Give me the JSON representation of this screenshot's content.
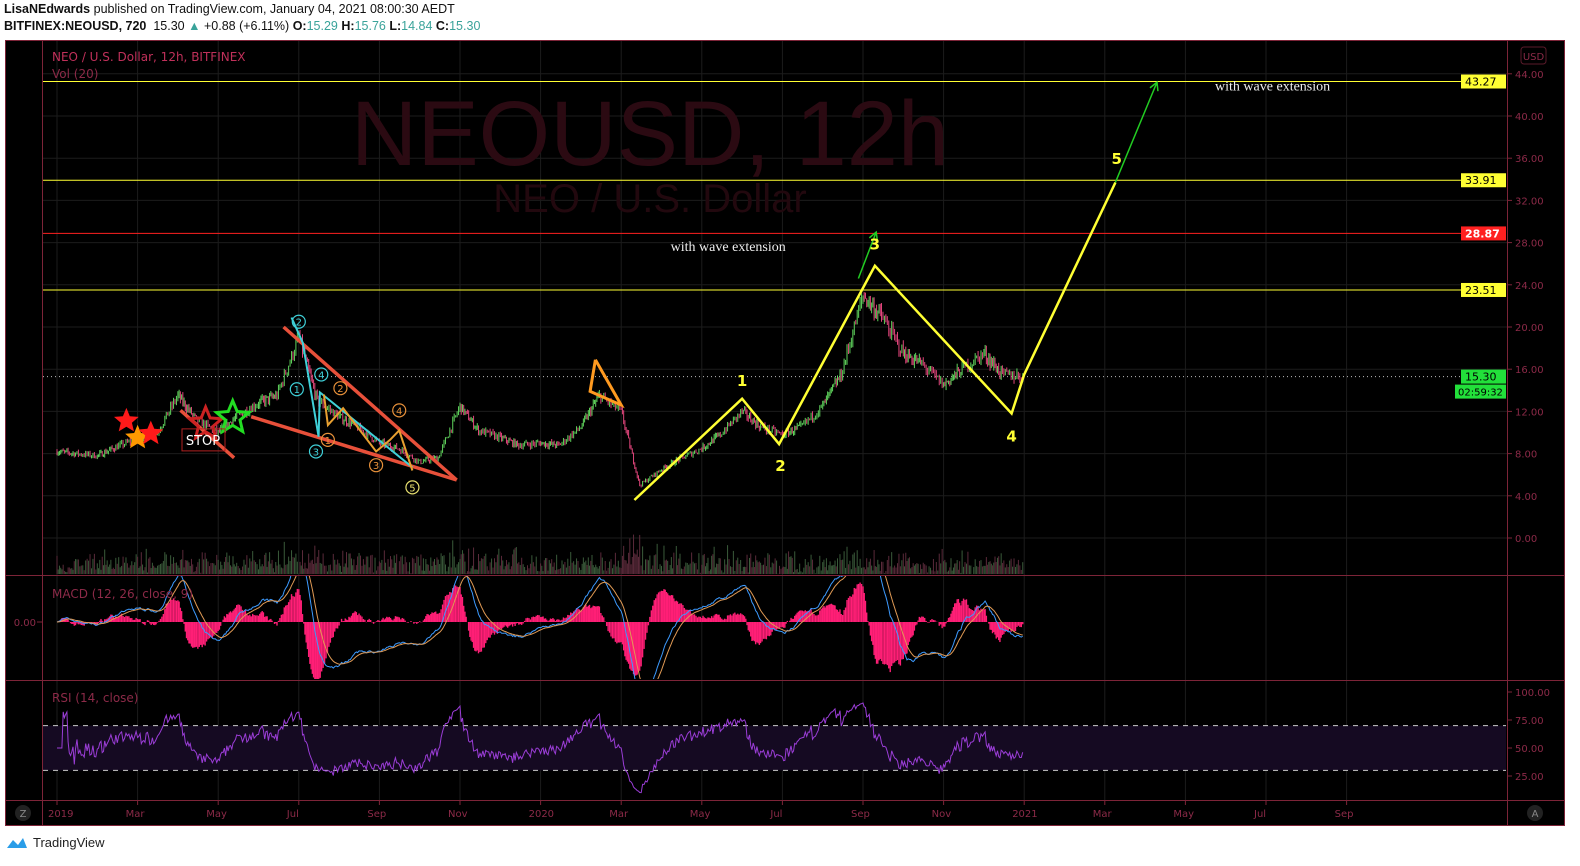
{
  "header": {
    "author": "LisaNEdwards",
    "published": "published on TradingView.com, January 04, 2021 08:00:30 AEDT",
    "symbol": "BITFINEX:NEOUSD, 720",
    "last": "15.30",
    "change": "+0.88 (+6.11%)",
    "o_label": "O:",
    "o": "15.29",
    "h_label": "H:",
    "h": "15.76",
    "l_label": "L:",
    "l": "14.84",
    "c_label": "C:",
    "c": "15.30"
  },
  "pane": {
    "title": "NEO / U.S. Dollar, 12h, BITFINEX",
    "volume_label": "Vol (20)",
    "macd_label": "MACD (12, 26, close, 9)",
    "rsi_label": "RSI (14, close)",
    "watermark": "NEOUSD, 12h",
    "watermark_sub": "NEO / U.S. Dollar",
    "currency": "USD",
    "macd_zero": "0.00",
    "countdown": "02:59:32",
    "zoom_button": "Z",
    "auto_button": "A"
  },
  "footer": {
    "brand": "TradingView"
  },
  "colors": {
    "up": "#5fd35c",
    "down": "#e0457b",
    "border": "#7d2438",
    "axis_text": "#8c2a48",
    "macd_hist": "#ff1f76",
    "macd_line": "#3d9bff",
    "signal_line": "#e09a55",
    "rsi": "#9a3dd6",
    "yellow": "#ffff33",
    "green": "#22cc22"
  },
  "chart_data": {
    "type": "candlestick",
    "interval": "12h",
    "price_axis": {
      "ticks": [
        "0.00",
        "4.00",
        "8.00",
        "12.00",
        "16.00",
        "20.00",
        "24.00",
        "28.00",
        "32.00",
        "36.00",
        "40.00",
        "44.00"
      ],
      "range": [
        -3,
        47
      ]
    },
    "time_axis": {
      "ticks": [
        "2019",
        "Mar",
        "May",
        "Jul",
        "Sep",
        "Nov",
        "2020",
        "Mar",
        "May",
        "Jul",
        "Sep",
        "Nov",
        "2021",
        "Mar",
        "May",
        "Jul",
        "Sep"
      ],
      "tick_dates": [
        "2019-01-01",
        "2019-03-01",
        "2019-05-01",
        "2019-07-01",
        "2019-09-01",
        "2019-11-01",
        "2020-01-01",
        "2020-03-01",
        "2020-05-01",
        "2020-07-01",
        "2020-09-01",
        "2020-11-01",
        "2021-01-01",
        "2021-03-01",
        "2021-05-01",
        "2021-07-01",
        "2021-09-01"
      ]
    },
    "close_series": [
      [
        "2019-01-01",
        8.2
      ],
      [
        "2019-01-15",
        8.0
      ],
      [
        "2019-02-01",
        7.8
      ],
      [
        "2019-02-15",
        8.6
      ],
      [
        "2019-03-01",
        9.4
      ],
      [
        "2019-03-15",
        9.8
      ],
      [
        "2019-04-01",
        13.5
      ],
      [
        "2019-04-15",
        11.2
      ],
      [
        "2019-05-01",
        10.0
      ],
      [
        "2019-05-15",
        11.5
      ],
      [
        "2019-06-01",
        12.8
      ],
      [
        "2019-06-15",
        13.5
      ],
      [
        "2019-07-01",
        19.0
      ],
      [
        "2019-07-15",
        13.0
      ],
      [
        "2019-08-01",
        11.5
      ],
      [
        "2019-08-15",
        10.5
      ],
      [
        "2019-09-01",
        9.0
      ],
      [
        "2019-09-15",
        8.5
      ],
      [
        "2019-10-01",
        7.2
      ],
      [
        "2019-10-15",
        7.6
      ],
      [
        "2019-11-01",
        12.5
      ],
      [
        "2019-11-15",
        10.2
      ],
      [
        "2019-12-01",
        9.5
      ],
      [
        "2019-12-15",
        8.8
      ],
      [
        "2020-01-01",
        9.0
      ],
      [
        "2020-01-15",
        8.8
      ],
      [
        "2020-02-01",
        10.5
      ],
      [
        "2020-02-15",
        13.5
      ],
      [
        "2020-03-01",
        12.0
      ],
      [
        "2020-03-15",
        5.0
      ],
      [
        "2020-04-01",
        6.5
      ],
      [
        "2020-04-15",
        7.5
      ],
      [
        "2020-05-01",
        8.5
      ],
      [
        "2020-05-15",
        9.8
      ],
      [
        "2020-06-01",
        12.0
      ],
      [
        "2020-06-15",
        10.5
      ],
      [
        "2020-07-01",
        9.8
      ],
      [
        "2020-07-15",
        10.5
      ],
      [
        "2020-08-01",
        12.5
      ],
      [
        "2020-08-15",
        15.5
      ],
      [
        "2020-09-01",
        23.0
      ],
      [
        "2020-09-15",
        21.0
      ],
      [
        "2020-10-01",
        17.5
      ],
      [
        "2020-10-15",
        16.5
      ],
      [
        "2020-11-01",
        14.5
      ],
      [
        "2020-11-15",
        16.0
      ],
      [
        "2020-12-01",
        17.5
      ],
      [
        "2020-12-15",
        15.5
      ],
      [
        "2021-01-01",
        15.3
      ]
    ],
    "last_price": {
      "value": 15.3,
      "label": "15.30"
    },
    "horizontal_levels": [
      {
        "value": 43.27,
        "label": "43.27",
        "color": "#ffff33"
      },
      {
        "value": 33.91,
        "label": "33.91",
        "color": "#ffff33"
      },
      {
        "value": 28.87,
        "label": "28.87",
        "color": "#ff2020"
      },
      {
        "value": 23.51,
        "label": "23.51",
        "color": "#ffff33"
      }
    ],
    "wave_path": [
      [
        "2020-03-11",
        3.6
      ],
      [
        "2020-06-01",
        13.2
      ],
      [
        "2020-06-29",
        8.9
      ],
      [
        "2020-09-10",
        25.8
      ],
      [
        "2020-12-22",
        11.8
      ],
      [
        "2021-01-01",
        15.5
      ],
      [
        "2021-03-09",
        33.7
      ]
    ],
    "wave_labels": [
      {
        "text": "1",
        "date": "2020-06-01",
        "price": 15.0
      },
      {
        "text": "2",
        "date": "2020-06-30",
        "price": 6.9
      },
      {
        "text": "3",
        "date": "2020-09-10",
        "price": 27.9
      },
      {
        "text": "4",
        "date": "2020-12-22",
        "price": 9.7
      },
      {
        "text": "5",
        "date": "2021-03-10",
        "price": 36.0
      }
    ],
    "extension_arrows": [
      {
        "from": [
          "2021-03-09",
          33.7
        ],
        "to": [
          "2021-04-10",
          43.2
        ]
      },
      {
        "from": [
          "2020-08-28",
          24.6
        ],
        "to": [
          "2020-09-11",
          29.0
        ]
      }
    ],
    "text_notes": [
      {
        "text": "with wave extension",
        "date": "2020-05-21",
        "price": 27.7
      },
      {
        "text": "with wave extension",
        "date": "2021-07-06",
        "price": 42.9
      }
    ],
    "wedge_lines": [
      {
        "from": [
          "2019-06-20",
          20.0
        ],
        "to": [
          "2019-10-29",
          5.5
        ]
      },
      {
        "from": [
          "2019-05-26",
          11.5
        ],
        "to": [
          "2019-10-29",
          5.5
        ]
      },
      {
        "from": [
          "2019-04-03",
          12.1
        ],
        "to": [
          "2019-05-13",
          7.6
        ]
      }
    ],
    "cyan_count": [
      [
        "2019-06-26",
        20.9
      ],
      [
        "2019-07-04",
        18.5
      ],
      [
        "2019-07-16",
        9.6
      ],
      [
        "2019-07-17",
        13.8
      ],
      [
        "2019-09-26",
        6.7
      ]
    ],
    "orange_count": [
      [
        "2019-07-20",
        13.6
      ],
      [
        "2019-07-23",
        10.7
      ],
      [
        "2019-08-04",
        12.3
      ],
      [
        "2019-08-29",
        8.2
      ],
      [
        "2019-09-09",
        9.3
      ],
      [
        "2019-09-16",
        10.2
      ],
      [
        "2019-09-26",
        6.4
      ]
    ],
    "circled_labels": [
      {
        "text": "2",
        "date": "2019-07-01",
        "price": 20.5,
        "color": "#3fd0d8"
      },
      {
        "text": "1",
        "date": "2019-06-30",
        "price": 14.1,
        "color": "#3fd0d8"
      },
      {
        "text": "4",
        "date": "2019-07-18",
        "price": 15.5,
        "color": "#3fd0d8"
      },
      {
        "text": "3",
        "date": "2019-07-14",
        "price": 8.2,
        "color": "#3fd0d8"
      },
      {
        "text": "1",
        "date": "2019-07-23",
        "price": 9.3,
        "color": "#e8913a"
      },
      {
        "text": "2",
        "date": "2019-08-02",
        "price": 14.2,
        "color": "#e8913a"
      },
      {
        "text": "3",
        "date": "2019-08-29",
        "price": 6.9,
        "color": "#e8913a"
      },
      {
        "text": "4",
        "date": "2019-09-16",
        "price": 12.1,
        "color": "#e8913a"
      },
      {
        "text": "5",
        "date": "2019-09-26",
        "price": 4.8,
        "color": "#e8e070"
      }
    ],
    "stars": [
      {
        "date": "2019-02-23",
        "price": 11.1,
        "color": "#ff1a1a",
        "filled": true
      },
      {
        "date": "2019-03-01",
        "price": 9.5,
        "color": "#ff9900",
        "filled": true
      },
      {
        "date": "2019-03-11",
        "price": 9.9,
        "color": "#ff1a1a",
        "filled": true
      },
      {
        "date": "2019-04-22",
        "price": 10.8,
        "color": "#cc2222",
        "filled": false
      },
      {
        "date": "2019-05-12",
        "price": 11.4,
        "color": "#22dd22",
        "filled": false
      }
    ],
    "stop_label": {
      "text": "STOP",
      "date": "2019-04-20",
      "price": 9.3
    },
    "orange_triangle": [
      [
        "2020-02-12",
        16.9
      ],
      [
        "2020-03-01",
        12.6
      ],
      [
        "2020-02-08",
        13.9
      ],
      [
        "2020-02-12",
        16.9
      ]
    ],
    "indicators": {
      "volume": {
        "name": "Vol (20)"
      },
      "macd": {
        "name": "MACD (12, 26, close, 9)",
        "zero_label": "0.00"
      },
      "rsi": {
        "name": "RSI (14, close)",
        "ticks": [
          "25.00",
          "50.00",
          "75.00",
          "100.00"
        ],
        "bands": [
          30,
          70
        ]
      }
    }
  }
}
